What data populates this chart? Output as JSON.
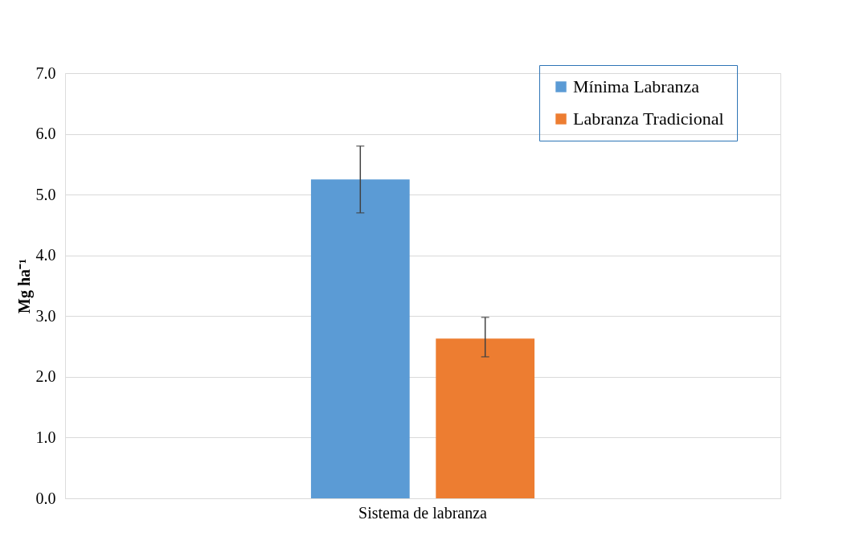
{
  "chart_data": {
    "type": "bar",
    "ylabel": "Mg ha⁻¹",
    "categories": [
      "Sistema de labranza"
    ],
    "series": [
      {
        "name": "Mínima Labranza",
        "color": "#5b9bd5",
        "values": [
          5.25
        ],
        "errors": [
          [
            4.7,
            5.8
          ]
        ]
      },
      {
        "name": "Labranza Tradicional",
        "color": "#ed7d31",
        "values": [
          2.63
        ],
        "errors": [
          [
            2.33,
            2.98
          ]
        ]
      }
    ],
    "ylim": [
      0,
      7
    ],
    "yticks": [
      {
        "value": 0,
        "label": "0.0"
      },
      {
        "value": 1,
        "label": "1.0"
      },
      {
        "value": 2,
        "label": "2.0"
      },
      {
        "value": 3,
        "label": "3.0"
      },
      {
        "value": 4,
        "label": "4.0"
      },
      {
        "value": 5,
        "label": "5.0"
      },
      {
        "value": 6,
        "label": "6.0"
      },
      {
        "value": 7,
        "label": "7.0"
      }
    ],
    "grid": "y",
    "legend": "top right"
  }
}
